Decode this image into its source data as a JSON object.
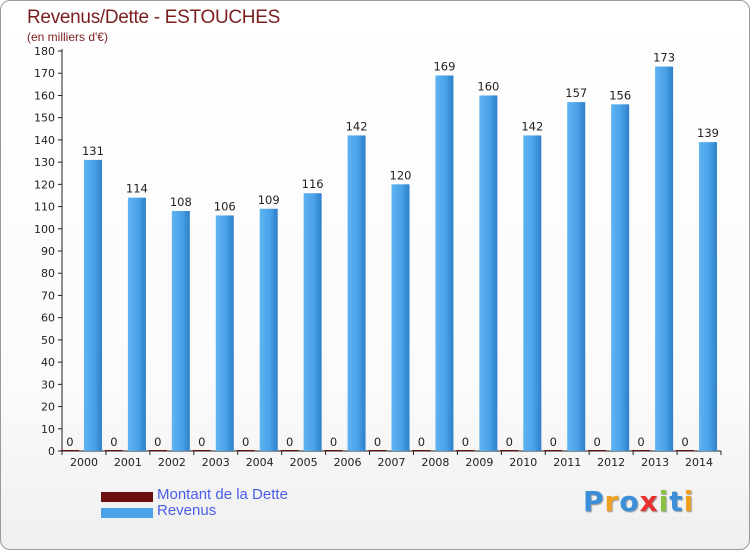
{
  "chart_data": {
    "type": "bar",
    "title": "Revenus/Dette - ESTOUCHES",
    "subtitle": "(en milliers d'€)",
    "categories": [
      "2000",
      "2001",
      "2002",
      "2003",
      "2004",
      "2005",
      "2006",
      "2007",
      "2008",
      "2009",
      "2010",
      "2011",
      "2012",
      "2013",
      "2014"
    ],
    "series": [
      {
        "name": "Montant de la Dette",
        "values": [
          0,
          0,
          0,
          0,
          0,
          0,
          0,
          0,
          0,
          0,
          0,
          0,
          0,
          0,
          0
        ],
        "color": "#6b0f0f"
      },
      {
        "name": "Revenus",
        "values": [
          131,
          114,
          108,
          106,
          109,
          116,
          142,
          120,
          169,
          160,
          142,
          157,
          156,
          173,
          139
        ],
        "color": "#4aa3e8"
      }
    ],
    "ylim": [
      0,
      180
    ],
    "ytick_step": 10,
    "grid": false,
    "legend_position": "bottom-left"
  },
  "logo": {
    "letters": [
      "P",
      "r",
      "o",
      "x",
      "i",
      "t",
      "i"
    ],
    "colors": [
      "#3b8fd8",
      "#f0a020",
      "#3b8fd8",
      "#e83030",
      "#88c040",
      "#3b8fd8",
      "#f0a020"
    ]
  }
}
